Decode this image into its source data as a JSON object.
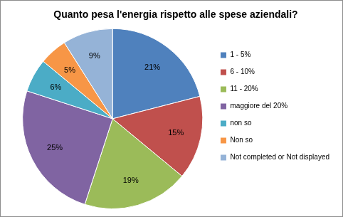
{
  "chart_data": {
    "type": "pie",
    "title": "Quanto pesa l'energia rispetto alle spese aziendali?",
    "categories": [
      "1 - 5%",
      "6 - 10%",
      "11 - 20%",
      "maggiore del 20%",
      "non so",
      "Non so",
      "Not completed or Not displayed"
    ],
    "values": [
      21,
      15,
      19,
      25,
      6,
      5,
      9
    ],
    "value_labels": [
      "21%",
      "15%",
      "19%",
      "25%",
      "6%",
      "5%",
      "9%"
    ],
    "colors": [
      "#4f81bd",
      "#c0504d",
      "#9bbb59",
      "#8064a2",
      "#4bacc6",
      "#f79646",
      "#95b3d7"
    ],
    "legend": "right",
    "data_labels": true
  }
}
